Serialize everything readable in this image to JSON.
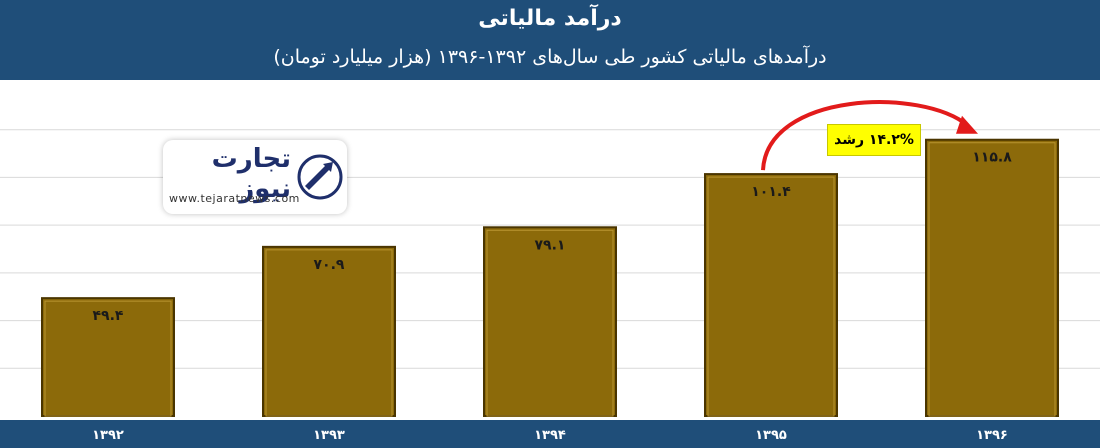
{
  "header": {
    "title": "درآمد مالیاتی",
    "subtitle": "درآمدهای مالیاتی کشور طی سال‌های ۱۳۹۲-۱۳۹۶ (هزار میلیارد تومان)"
  },
  "logo": {
    "brand_text": "تجارت نیوز",
    "url": "www.tejaratnews.com"
  },
  "annotation": {
    "growth_label": "۱۴.۲% رشد"
  },
  "colors": {
    "header": "#1f4e79",
    "bar": "#8c6a0a",
    "bar_border": "#4a3500",
    "arrow": "#e21b1b",
    "highlight": "#ffff00"
  },
  "chart_data": {
    "type": "bar",
    "categories": [
      "۱۳۹۲",
      "۱۳۹۳",
      "۱۳۹۴",
      "۱۳۹۵",
      "۱۳۹۶"
    ],
    "values": [
      49.4,
      70.9,
      79.1,
      101.4,
      115.8
    ],
    "value_labels": [
      "۴۹.۴",
      "۷۰.۹",
      "۷۹.۱",
      "۱۰۱.۴",
      "۱۱۵.۸"
    ],
    "ylim": [
      0,
      140
    ],
    "grid": true,
    "legend": "none"
  }
}
